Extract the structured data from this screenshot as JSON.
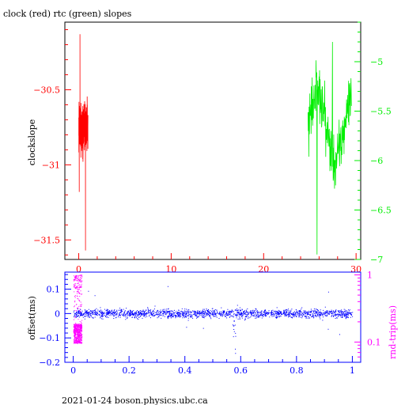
{
  "title": "clock (red) rtc (green) slopes",
  "footer": "2021-01-24 boson.physics.ubc.ca",
  "colors": {
    "clock": "#ff0000",
    "rtc": "#00ee00",
    "offset": "#0000ff",
    "rndtrip": "#ff00ff",
    "axis_top": "#ff0000",
    "axis_bottom": "#0000ff"
  },
  "chart_data": [
    {
      "type": "line",
      "title": "clock (red) rtc (green) slopes",
      "ylabel": "clockslope",
      "xlim": [
        -1.5,
        30.5
      ],
      "ylim": [
        -31.63,
        -30.05
      ],
      "y2lim": [
        -7.0,
        -4.6
      ],
      "xticks": [
        "0",
        "10",
        "20",
        "30"
      ],
      "yticks": [
        "-30.5",
        "-31",
        "-31.5"
      ],
      "y2ticks": [
        "-5",
        "-5.5",
        "-6",
        "-6.5",
        "-7"
      ],
      "series": [
        {
          "name": "clock",
          "x_range": [
            0.0,
            1.0
          ],
          "y_range": [
            -31.57,
            -30.13
          ],
          "axis": "left"
        },
        {
          "name": "rtc",
          "x_range": [
            24.8,
            29.5
          ],
          "y_range": [
            -6.95,
            -4.8
          ],
          "axis": "right"
        }
      ]
    },
    {
      "type": "scatter",
      "ylabel": "offset(ms)",
      "y2label": "rnd-trip(ms)",
      "xlim": [
        -0.03,
        1.03
      ],
      "ylim": [
        -0.2,
        0.17
      ],
      "y2lim": [
        0.05,
        1.1
      ],
      "y2scale": "log",
      "xticks": [
        "0",
        "0.2",
        "0.4",
        "0.6",
        "0.8",
        "1"
      ],
      "yticks": [
        "0.1",
        "0",
        "-0.1",
        "-0.2"
      ],
      "y2ticks": [
        "1",
        "0.1"
      ],
      "series": [
        {
          "name": "offset",
          "x_range": [
            0.0,
            1.0
          ],
          "y_center": 0.0,
          "y_spread": 0.035,
          "dip_x": 0.575,
          "dip_y": -0.19
        },
        {
          "name": "rnd-trip",
          "x_range": [
            0.0,
            0.03
          ],
          "y_range": [
            0.09,
            1.0
          ]
        }
      ]
    }
  ]
}
